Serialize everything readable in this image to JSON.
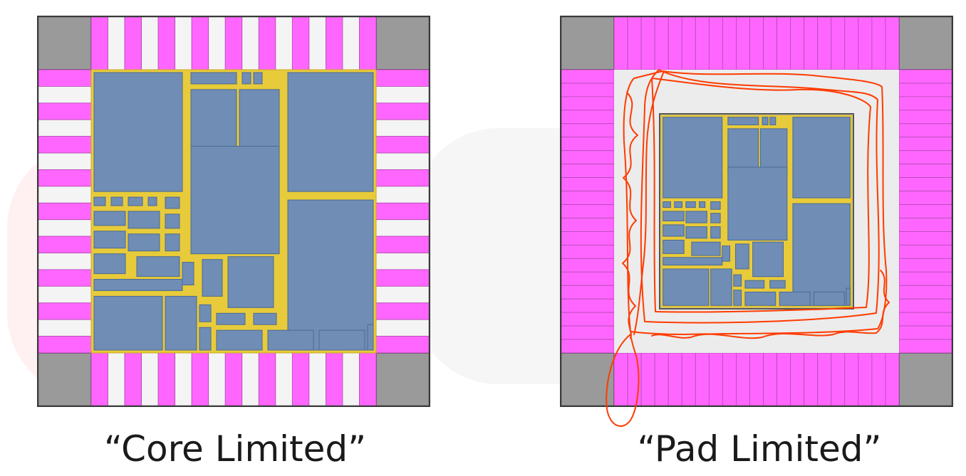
{
  "colors": {
    "pad": "#ff66ff",
    "pad_empty": "#f4f4f4",
    "corner": "#9a9a9a",
    "border": "#3a3a3a",
    "core_block": "#6f8db5",
    "routing": "#e8cb3a",
    "margin_area": "#ececec",
    "scribble": "#ff3b00"
  },
  "diagrams": [
    {
      "caption": "“Core Limited”",
      "pad_style": "alternating"
    },
    {
      "caption": "“Pad Limited”",
      "pad_style": "dense"
    }
  ]
}
